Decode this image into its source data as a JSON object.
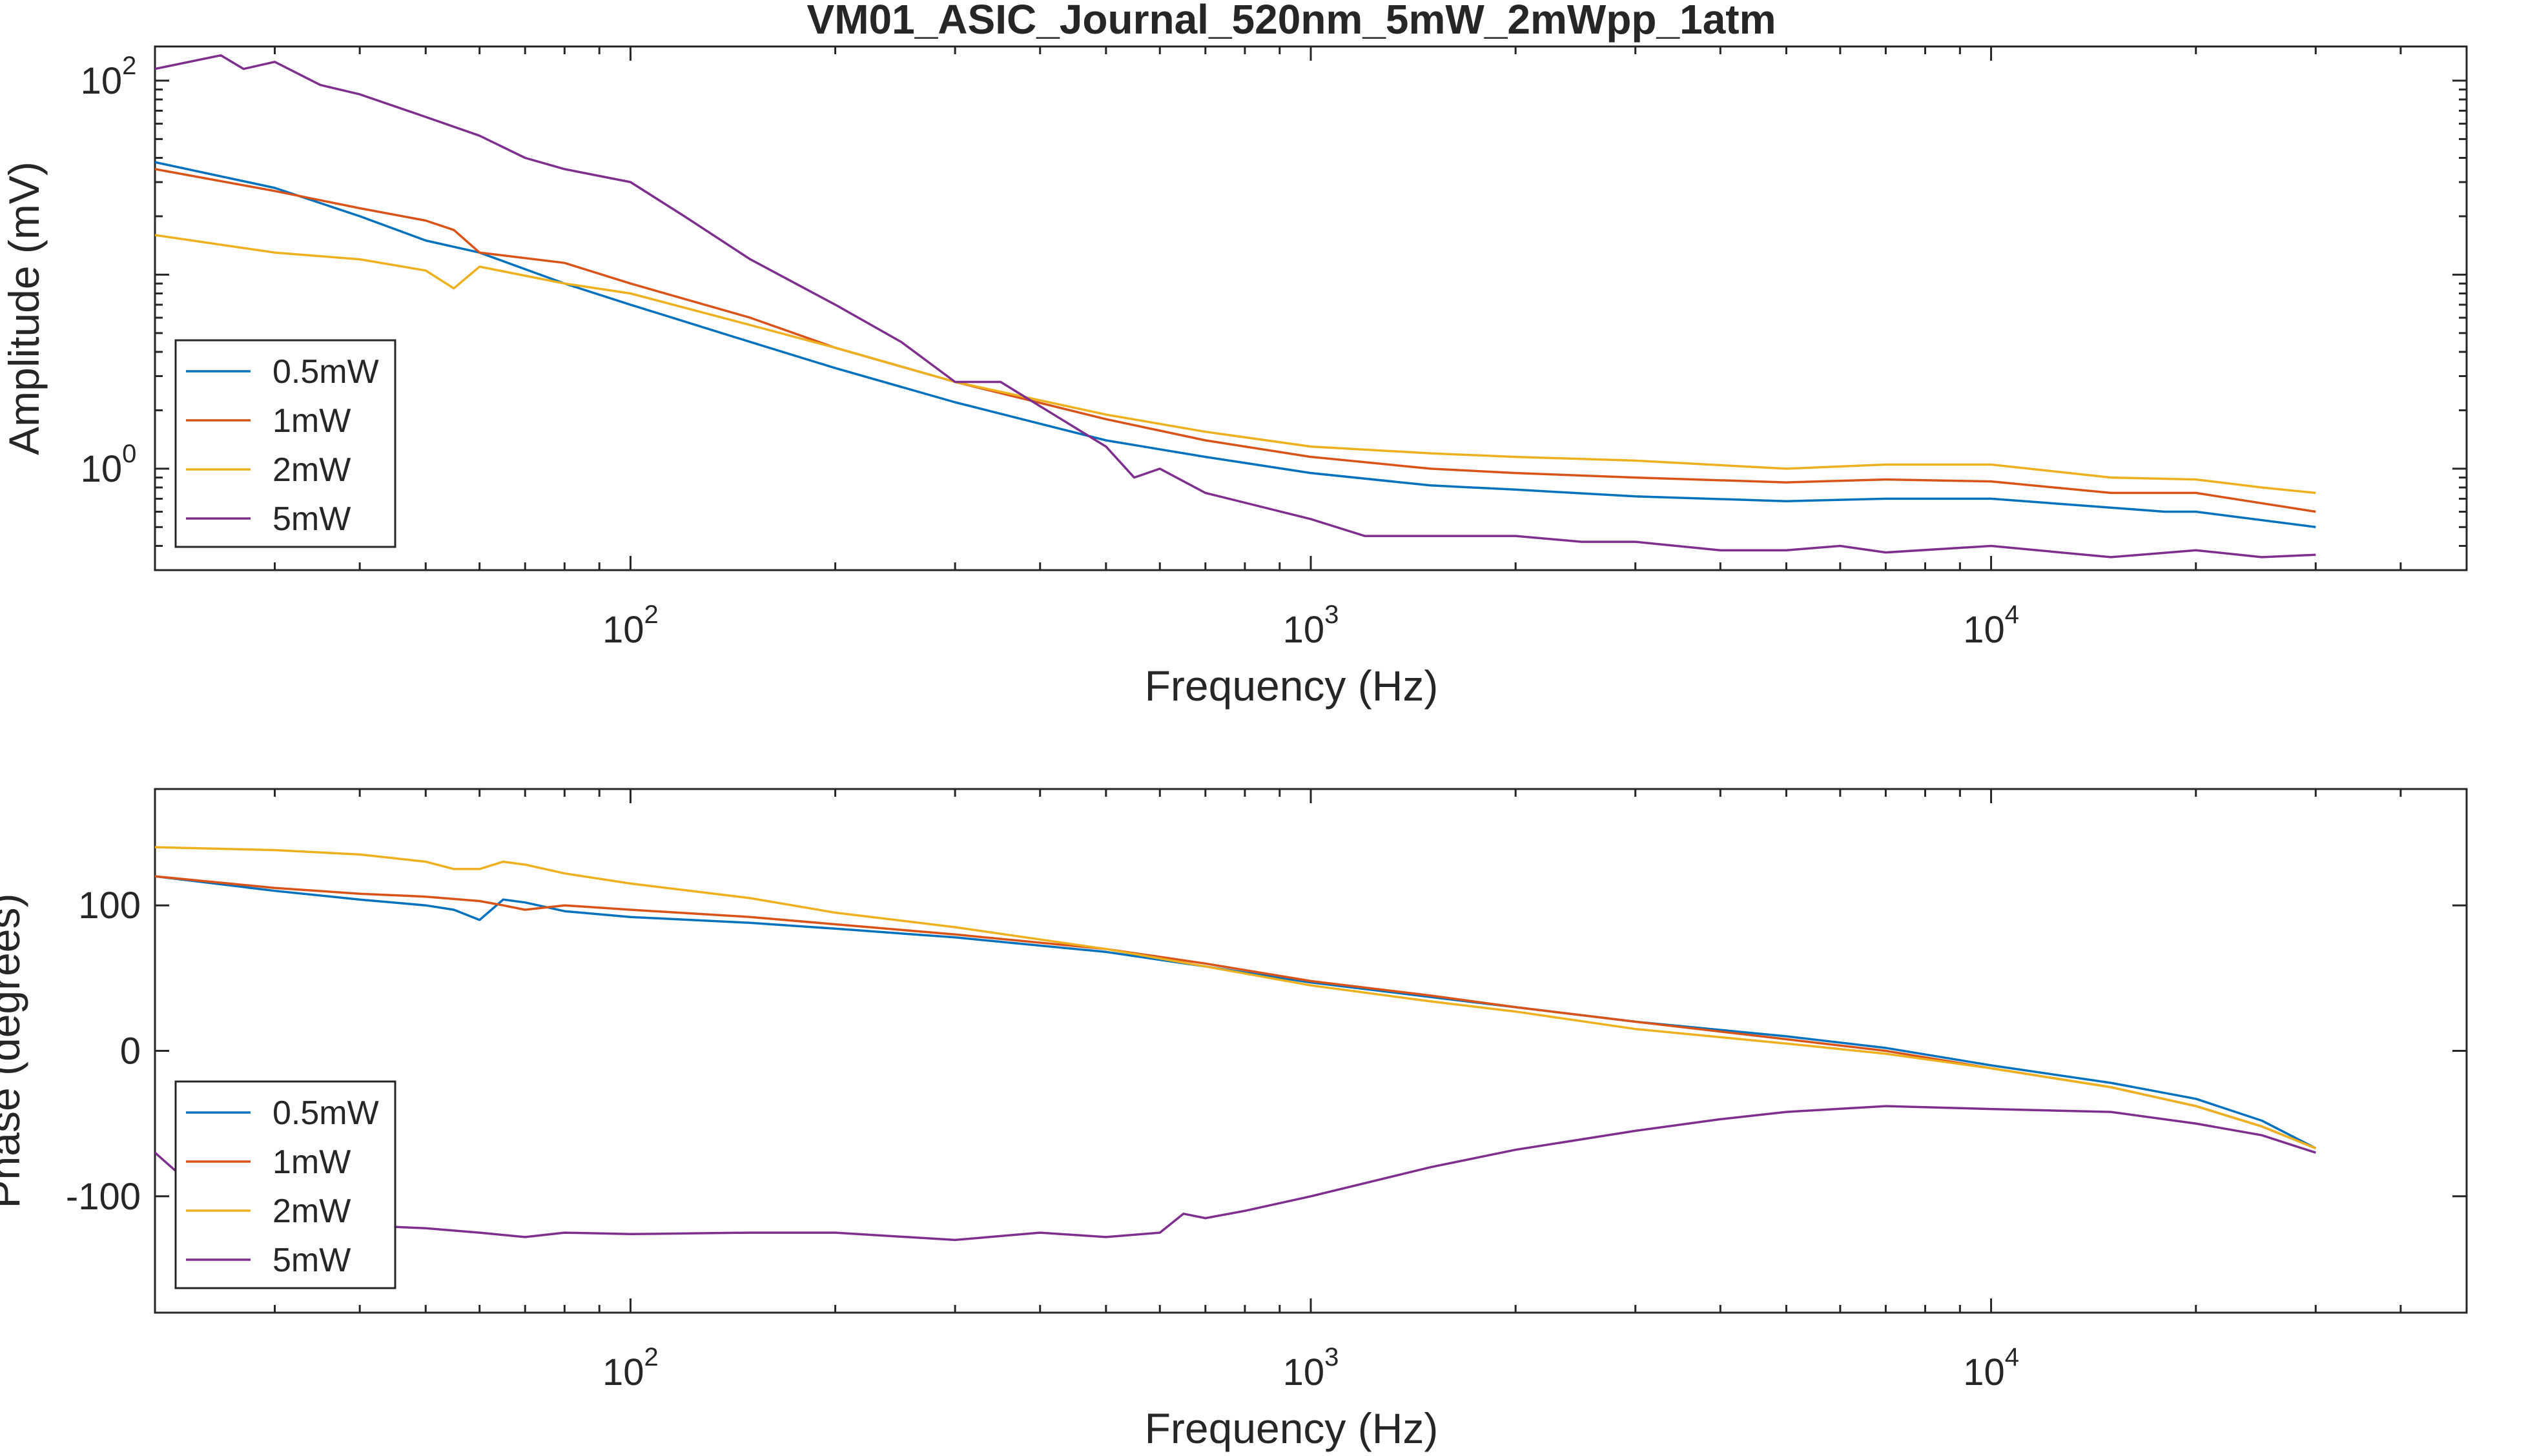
{
  "figure": {
    "title": "VM01_ASIC_Journal_520nm_5mW_2mWpp_1atm"
  },
  "chart_data": [
    {
      "type": "line",
      "title": "VM01_ASIC_Journal_520nm_5mW_2mWpp_1atm",
      "xlabel": "Frequency (Hz)",
      "ylabel": "Amplitude (mV)",
      "xscale": "log",
      "yscale": "log",
      "xlim": [
        20,
        50000
      ],
      "ylim": [
        0.3,
        150
      ],
      "x_ticks": [
        {
          "base": "10",
          "exp": "2"
        },
        {
          "base": "10",
          "exp": "3"
        },
        {
          "base": "10",
          "exp": "4"
        }
      ],
      "y_ticks": [
        {
          "base": "10",
          "exp": "0"
        },
        {
          "base": "10",
          "exp": "2"
        }
      ],
      "grid": false,
      "legend_position": "bottom-left",
      "series": [
        {
          "name": "0.5mW",
          "color": "#0072BD",
          "points": [
            [
              20,
              38
            ],
            [
              30,
              28
            ],
            [
              40,
              20
            ],
            [
              50,
              15
            ],
            [
              60,
              13
            ],
            [
              80,
              9
            ],
            [
              100,
              7
            ],
            [
              150,
              4.5
            ],
            [
              200,
              3.3
            ],
            [
              300,
              2.2
            ],
            [
              500,
              1.4
            ],
            [
              700,
              1.15
            ],
            [
              1000,
              0.95
            ],
            [
              1500,
              0.82
            ],
            [
              2000,
              0.78
            ],
            [
              3000,
              0.72
            ],
            [
              5000,
              0.68
            ],
            [
              7000,
              0.7
            ],
            [
              10000,
              0.7
            ],
            [
              15000,
              0.63
            ],
            [
              18000,
              0.6
            ],
            [
              20000,
              0.6
            ],
            [
              30000,
              0.5
            ]
          ]
        },
        {
          "name": "1mW",
          "color": "#D95319",
          "points": [
            [
              20,
              35
            ],
            [
              30,
              27
            ],
            [
              40,
              22
            ],
            [
              50,
              19
            ],
            [
              55,
              17
            ],
            [
              60,
              13
            ],
            [
              80,
              11.5
            ],
            [
              100,
              9
            ],
            [
              150,
              6
            ],
            [
              200,
              4.2
            ],
            [
              300,
              2.8
            ],
            [
              500,
              1.8
            ],
            [
              700,
              1.4
            ],
            [
              1000,
              1.15
            ],
            [
              1500,
              1.0
            ],
            [
              2000,
              0.95
            ],
            [
              3000,
              0.9
            ],
            [
              5000,
              0.85
            ],
            [
              7000,
              0.88
            ],
            [
              10000,
              0.86
            ],
            [
              15000,
              0.75
            ],
            [
              20000,
              0.75
            ],
            [
              30000,
              0.6
            ]
          ]
        },
        {
          "name": "2mW",
          "color": "#EDB120",
          "points": [
            [
              20,
              16
            ],
            [
              30,
              13
            ],
            [
              40,
              12
            ],
            [
              50,
              10.5
            ],
            [
              55,
              8.5
            ],
            [
              60,
              11
            ],
            [
              80,
              9
            ],
            [
              100,
              8
            ],
            [
              150,
              5.5
            ],
            [
              200,
              4.2
            ],
            [
              300,
              2.8
            ],
            [
              500,
              1.9
            ],
            [
              700,
              1.55
            ],
            [
              1000,
              1.3
            ],
            [
              1500,
              1.2
            ],
            [
              2000,
              1.15
            ],
            [
              3000,
              1.1
            ],
            [
              5000,
              1.0
            ],
            [
              7000,
              1.05
            ],
            [
              10000,
              1.05
            ],
            [
              15000,
              0.9
            ],
            [
              20000,
              0.88
            ],
            [
              25000,
              0.8
            ],
            [
              30000,
              0.75
            ]
          ]
        },
        {
          "name": "5mW",
          "color": "#7E2F8E",
          "points": [
            [
              20,
              115
            ],
            [
              25,
              135
            ],
            [
              27,
              115
            ],
            [
              30,
              125
            ],
            [
              35,
              95
            ],
            [
              40,
              85
            ],
            [
              50,
              65
            ],
            [
              60,
              52
            ],
            [
              70,
              40
            ],
            [
              80,
              35
            ],
            [
              100,
              30
            ],
            [
              120,
              20
            ],
            [
              150,
              12
            ],
            [
              200,
              7
            ],
            [
              250,
              4.5
            ],
            [
              300,
              2.8
            ],
            [
              350,
              2.8
            ],
            [
              400,
              2.1
            ],
            [
              500,
              1.3
            ],
            [
              550,
              0.9
            ],
            [
              600,
              1.0
            ],
            [
              700,
              0.75
            ],
            [
              1000,
              0.55
            ],
            [
              1200,
              0.45
            ],
            [
              1500,
              0.45
            ],
            [
              2000,
              0.45
            ],
            [
              2500,
              0.42
            ],
            [
              3000,
              0.42
            ],
            [
              4000,
              0.38
            ],
            [
              5000,
              0.38
            ],
            [
              6000,
              0.4
            ],
            [
              7000,
              0.37
            ],
            [
              10000,
              0.4
            ],
            [
              15000,
              0.35
            ],
            [
              20000,
              0.38
            ],
            [
              25000,
              0.35
            ],
            [
              30000,
              0.36
            ]
          ]
        }
      ]
    },
    {
      "type": "line",
      "xlabel": "Frequency (Hz)",
      "ylabel": "Phase (degrees)",
      "xscale": "log",
      "yscale": "linear",
      "xlim": [
        20,
        50000
      ],
      "ylim": [
        -180,
        180
      ],
      "x_ticks": [
        {
          "base": "10",
          "exp": "2"
        },
        {
          "base": "10",
          "exp": "3"
        },
        {
          "base": "10",
          "exp": "4"
        }
      ],
      "y_ticks": [
        {
          "value": 100,
          "label": "100"
        },
        {
          "value": 0,
          "label": "0"
        },
        {
          "value": -100,
          "label": "-100"
        }
      ],
      "grid": false,
      "legend_position": "bottom-left",
      "series": [
        {
          "name": "0.5mW",
          "color": "#0072BD",
          "points": [
            [
              20,
              120
            ],
            [
              30,
              110
            ],
            [
              40,
              104
            ],
            [
              50,
              100
            ],
            [
              55,
              97
            ],
            [
              60,
              90
            ],
            [
              65,
              104
            ],
            [
              70,
              102
            ],
            [
              80,
              96
            ],
            [
              100,
              92
            ],
            [
              150,
              88
            ],
            [
              200,
              84
            ],
            [
              300,
              78
            ],
            [
              500,
              68
            ],
            [
              700,
              58
            ],
            [
              1000,
              47
            ],
            [
              1500,
              37
            ],
            [
              2000,
              30
            ],
            [
              3000,
              20
            ],
            [
              5000,
              10
            ],
            [
              7000,
              2
            ],
            [
              10000,
              -10
            ],
            [
              15000,
              -22
            ],
            [
              20000,
              -33
            ],
            [
              25000,
              -48
            ],
            [
              30000,
              -67
            ]
          ]
        },
        {
          "name": "1mW",
          "color": "#D95319",
          "points": [
            [
              20,
              120
            ],
            [
              30,
              112
            ],
            [
              40,
              108
            ],
            [
              50,
              106
            ],
            [
              60,
              103
            ],
            [
              65,
              100
            ],
            [
              70,
              97
            ],
            [
              80,
              100
            ],
            [
              100,
              97
            ],
            [
              150,
              92
            ],
            [
              200,
              87
            ],
            [
              300,
              80
            ],
            [
              500,
              70
            ],
            [
              700,
              60
            ],
            [
              1000,
              48
            ],
            [
              1500,
              38
            ],
            [
              2000,
              30
            ],
            [
              3000,
              20
            ],
            [
              5000,
              8
            ],
            [
              7000,
              0
            ],
            [
              10000,
              -12
            ],
            [
              15000,
              -25
            ],
            [
              20000,
              -38
            ],
            [
              25000,
              -52
            ],
            [
              30000,
              -67
            ]
          ]
        },
        {
          "name": "2mW",
          "color": "#EDB120",
          "points": [
            [
              20,
              140
            ],
            [
              30,
              138
            ],
            [
              40,
              135
            ],
            [
              50,
              130
            ],
            [
              55,
              125
            ],
            [
              60,
              125
            ],
            [
              65,
              130
            ],
            [
              70,
              128
            ],
            [
              80,
              122
            ],
            [
              100,
              115
            ],
            [
              150,
              105
            ],
            [
              200,
              95
            ],
            [
              300,
              85
            ],
            [
              500,
              70
            ],
            [
              700,
              58
            ],
            [
              1000,
              45
            ],
            [
              1500,
              34
            ],
            [
              2000,
              27
            ],
            [
              3000,
              15
            ],
            [
              5000,
              5
            ],
            [
              7000,
              -2
            ],
            [
              10000,
              -12
            ],
            [
              15000,
              -25
            ],
            [
              20000,
              -38
            ],
            [
              25000,
              -52
            ],
            [
              30000,
              -67
            ]
          ]
        },
        {
          "name": "5mW",
          "color": "#7E2F8E",
          "points": [
            [
              20,
              -70
            ],
            [
              25,
              -110
            ],
            [
              30,
              -118
            ],
            [
              40,
              -120
            ],
            [
              50,
              -122
            ],
            [
              60,
              -125
            ],
            [
              70,
              -128
            ],
            [
              80,
              -125
            ],
            [
              100,
              -126
            ],
            [
              150,
              -125
            ],
            [
              200,
              -125
            ],
            [
              300,
              -130
            ],
            [
              400,
              -125
            ],
            [
              500,
              -128
            ],
            [
              600,
              -125
            ],
            [
              650,
              -112
            ],
            [
              700,
              -115
            ],
            [
              800,
              -110
            ],
            [
              1000,
              -100
            ],
            [
              1500,
              -80
            ],
            [
              2000,
              -68
            ],
            [
              3000,
              -55
            ],
            [
              4000,
              -47
            ],
            [
              5000,
              -42
            ],
            [
              7000,
              -38
            ],
            [
              10000,
              -40
            ],
            [
              15000,
              -42
            ],
            [
              20000,
              -50
            ],
            [
              25000,
              -58
            ],
            [
              30000,
              -70
            ]
          ]
        }
      ]
    }
  ]
}
